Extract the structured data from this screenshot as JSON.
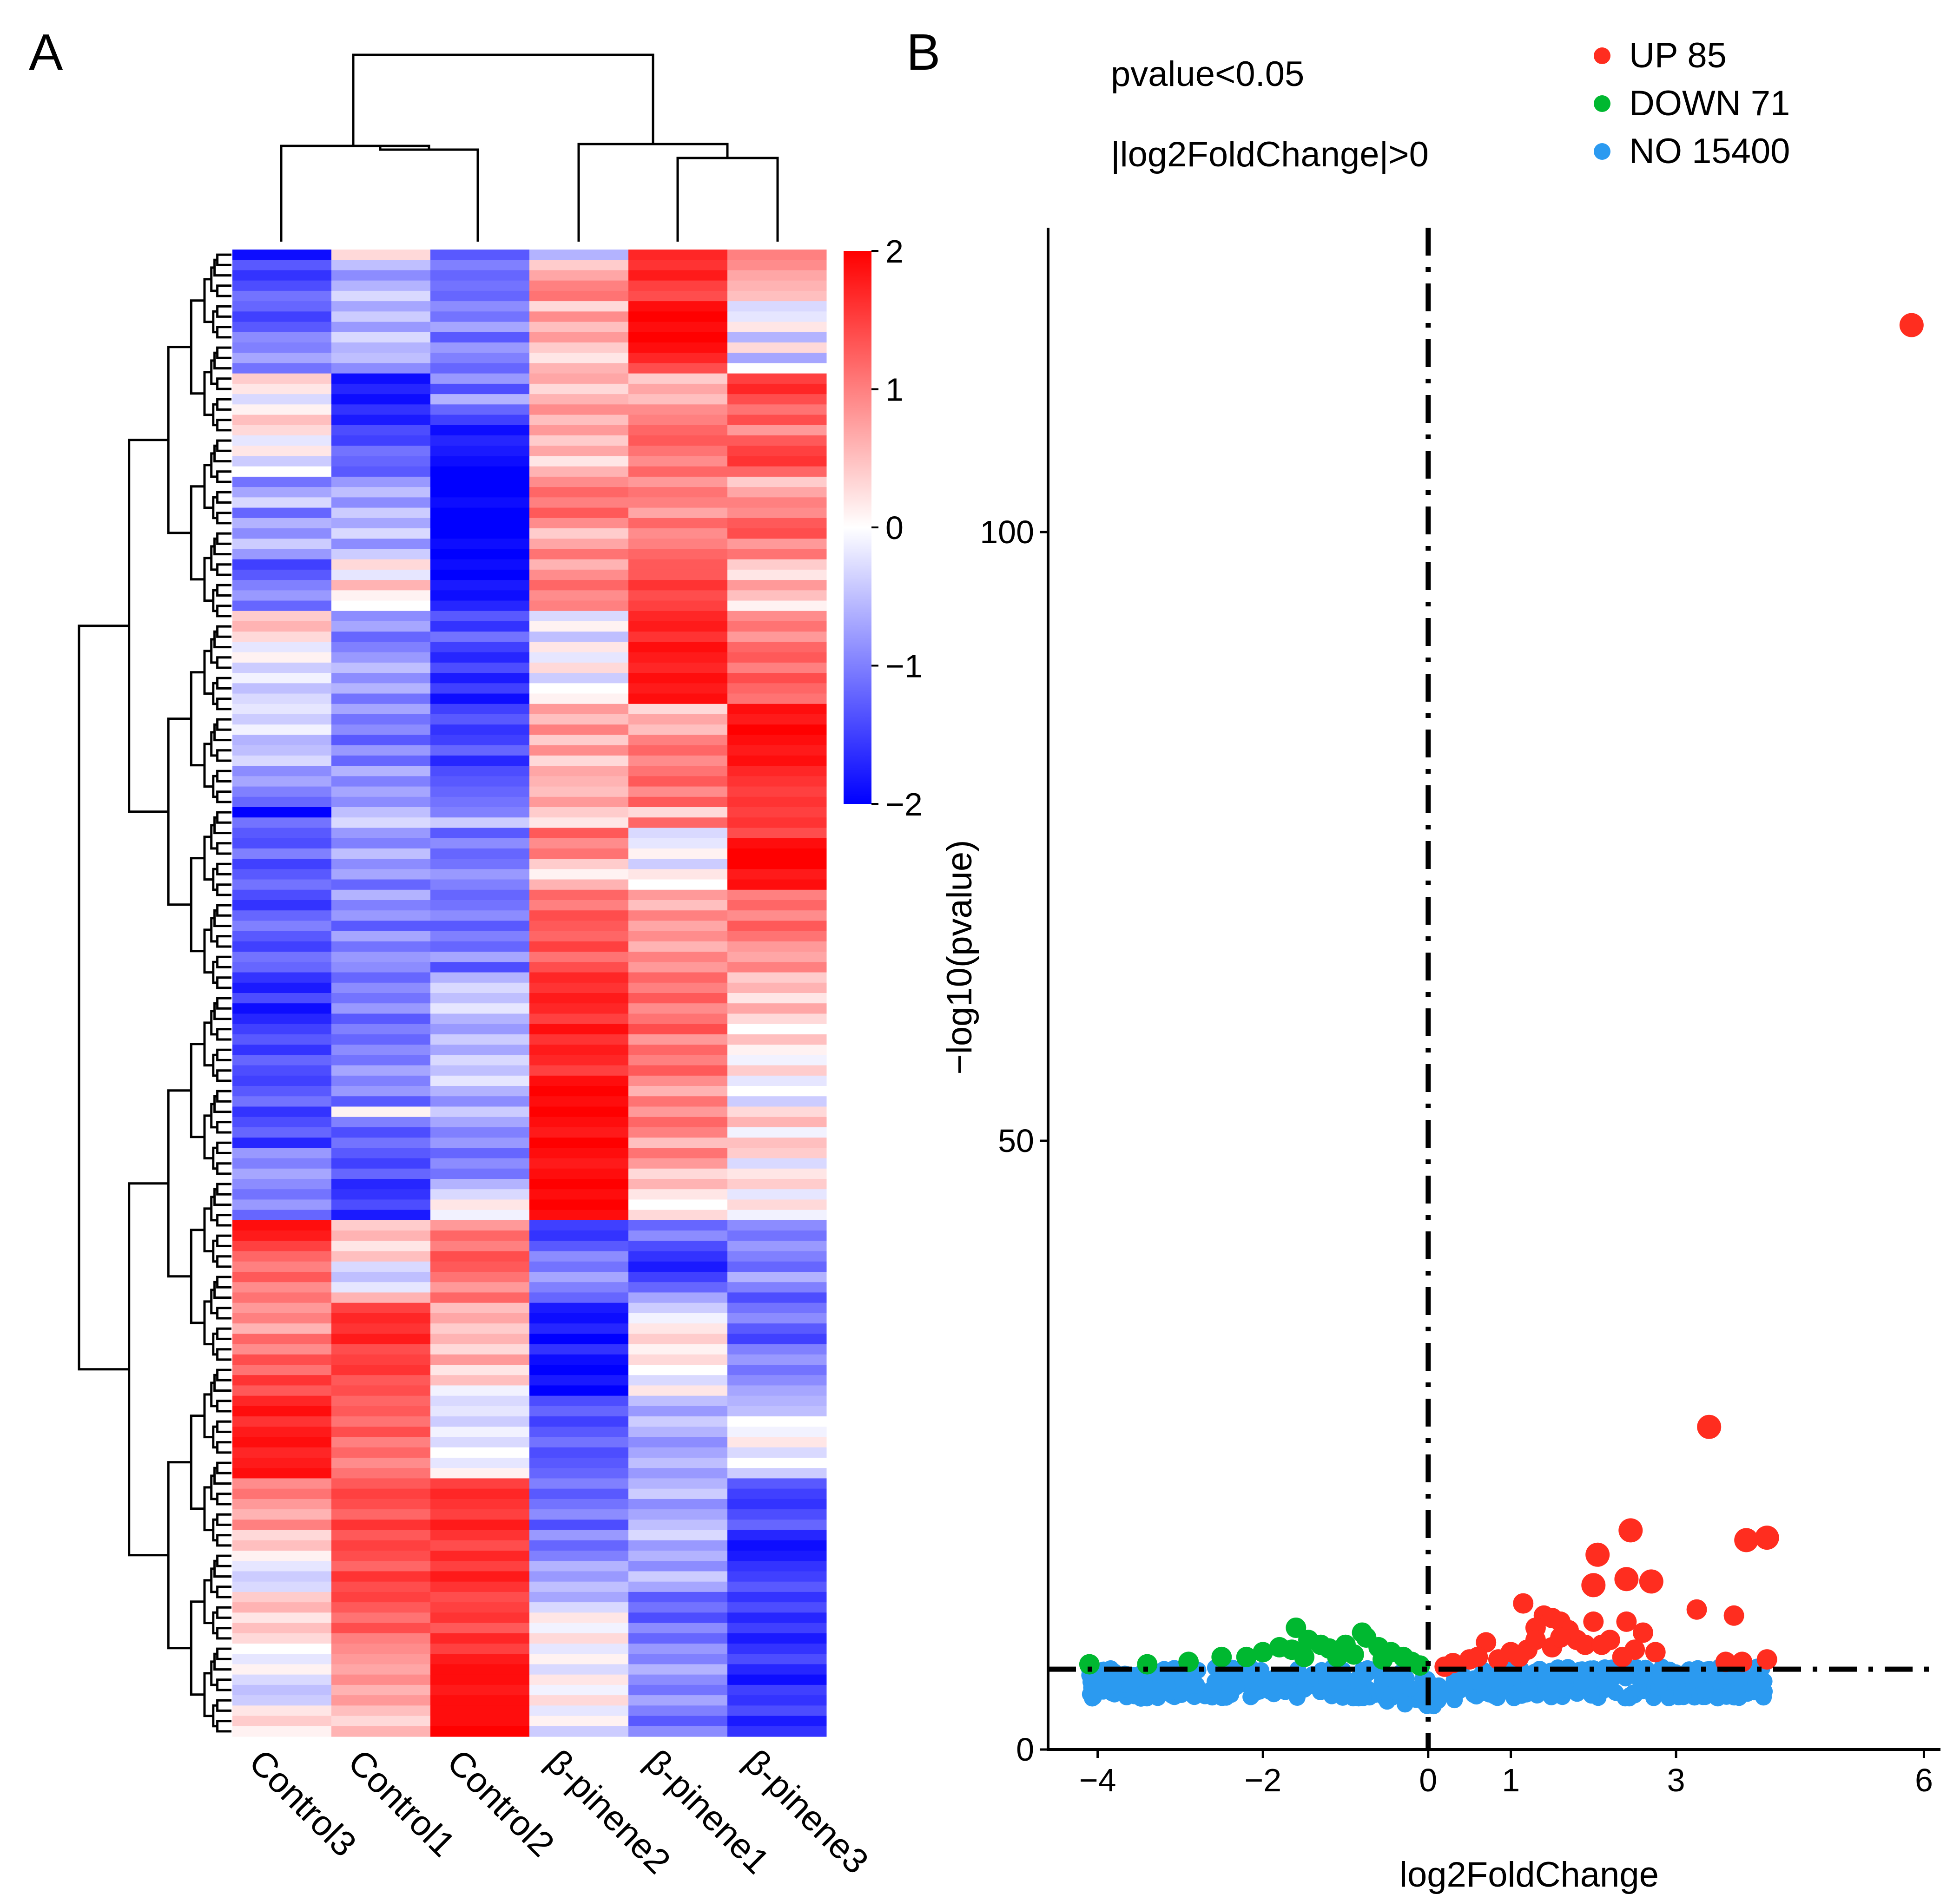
{
  "panels": {
    "a": "A",
    "b": "B"
  },
  "heatmap": {
    "columns": [
      "Control3",
      "Control1",
      "Control2",
      "β-pinene2",
      "β-pinene1",
      "β-pinene3"
    ],
    "colorbar": {
      "ticks": [
        "2",
        "1",
        "0",
        "−1",
        "−2"
      ],
      "min": -2,
      "max": 2
    },
    "colors": {
      "low": "#0000ff",
      "mid": "#ffffff",
      "high": "#ff0000"
    },
    "row_count": 150,
    "values": [
      [
        -1.9,
        0.3,
        -1.3,
        -0.6,
        1.7,
        1.0
      ],
      [
        -1.3,
        -0.5,
        -1.0,
        0.4,
        1.6,
        0.9
      ],
      [
        -1.6,
        -0.9,
        -1.2,
        0.7,
        1.8,
        0.7
      ],
      [
        -1.4,
        -0.6,
        -1.1,
        1.0,
        1.5,
        0.6
      ],
      [
        -1.1,
        -0.3,
        -1.2,
        1.1,
        1.4,
        0.5
      ],
      [
        -1.2,
        -0.7,
        -0.9,
        0.3,
        1.9,
        -0.3
      ],
      [
        -1.5,
        -0.4,
        -1.1,
        0.9,
        2.0,
        -0.2
      ],
      [
        -1.3,
        -0.8,
        -0.7,
        0.5,
        1.9,
        0.2
      ],
      [
        -0.9,
        -0.3,
        -1.3,
        0.8,
        2.0,
        -0.6
      ],
      [
        -1.0,
        -0.6,
        -0.8,
        0.4,
        1.9,
        0.3
      ],
      [
        -0.7,
        -0.5,
        -1.0,
        0.2,
        1.7,
        -0.7
      ],
      [
        -1.1,
        -0.9,
        -1.2,
        0.6,
        1.4,
        0.0
      ],
      [
        0.4,
        -1.9,
        -0.8,
        0.7,
        0.4,
        1.5
      ],
      [
        0.2,
        -1.7,
        -1.4,
        0.3,
        0.7,
        1.7
      ],
      [
        -0.3,
        -1.9,
        -0.6,
        0.6,
        0.5,
        1.4
      ],
      [
        0.1,
        -1.6,
        -1.2,
        0.9,
        0.9,
        1.1
      ],
      [
        0.5,
        -1.8,
        -1.5,
        0.5,
        1.0,
        1.4
      ],
      [
        0.3,
        -1.4,
        -1.9,
        0.8,
        1.2,
        0.8
      ],
      [
        -0.2,
        -1.5,
        -1.7,
        0.4,
        1.3,
        1.3
      ],
      [
        0.2,
        -1.1,
        -1.8,
        0.7,
        1.1,
        1.5
      ],
      [
        -0.4,
        -1.2,
        -1.9,
        0.2,
        0.9,
        1.6
      ],
      [
        0.0,
        -1.3,
        -2.0,
        0.6,
        1.2,
        1.2
      ],
      [
        -1.1,
        -0.8,
        -2.0,
        0.9,
        0.8,
        0.4
      ],
      [
        -0.7,
        -0.5,
        -2.0,
        1.2,
        1.1,
        0.7
      ],
      [
        -0.3,
        -0.9,
        -1.9,
        1.0,
        1.0,
        1.0
      ],
      [
        -1.2,
        -0.4,
        -2.0,
        1.3,
        0.7,
        0.9
      ],
      [
        -0.6,
        -0.7,
        -2.0,
        0.9,
        1.2,
        1.3
      ],
      [
        -0.9,
        -0.3,
        -2.0,
        0.4,
        0.9,
        1.4
      ],
      [
        -0.4,
        -0.9,
        -1.9,
        0.7,
        1.0,
        0.8
      ],
      [
        -0.8,
        -0.4,
        -2.0,
        1.1,
        1.2,
        1.1
      ],
      [
        -1.5,
        0.3,
        -1.9,
        0.6,
        1.3,
        0.4
      ],
      [
        -1.3,
        -0.2,
        -2.0,
        0.9,
        1.3,
        0.2
      ],
      [
        -1.0,
        0.6,
        -1.8,
        1.2,
        1.6,
        0.8
      ],
      [
        -0.8,
        0.1,
        -1.9,
        0.9,
        1.4,
        0.5
      ],
      [
        -1.2,
        0.0,
        -1.7,
        1.0,
        1.5,
        0.1
      ],
      [
        0.4,
        -0.9,
        -1.3,
        -0.3,
        1.7,
        0.9
      ],
      [
        0.6,
        -0.7,
        -1.6,
        0.1,
        1.8,
        1.1
      ],
      [
        0.3,
        -1.2,
        -1.1,
        -0.5,
        1.6,
        0.8
      ],
      [
        -0.2,
        -1.0,
        -1.5,
        0.2,
        1.9,
        1.2
      ],
      [
        0.1,
        -0.8,
        -1.7,
        -0.2,
        1.8,
        1.3
      ],
      [
        -0.4,
        -0.5,
        -1.4,
        0.3,
        1.7,
        1.0
      ],
      [
        -0.1,
        -0.9,
        -1.8,
        -0.4,
        1.9,
        1.4
      ],
      [
        -0.5,
        -0.6,
        -1.5,
        0.0,
        1.8,
        1.2
      ],
      [
        -0.3,
        -1.1,
        -1.9,
        0.1,
        1.9,
        1.1
      ],
      [
        -0.2,
        -0.7,
        -1.5,
        0.8,
        0.3,
        1.9
      ],
      [
        -0.4,
        -1.1,
        -1.3,
        0.5,
        0.7,
        1.8
      ],
      [
        -0.1,
        -0.9,
        -1.6,
        1.0,
        0.5,
        2.0
      ],
      [
        -0.6,
        -1.3,
        -1.5,
        0.4,
        1.0,
        1.9
      ],
      [
        -0.5,
        -0.8,
        -1.2,
        0.9,
        1.2,
        1.8
      ],
      [
        -0.3,
        -1.2,
        -1.7,
        0.3,
        0.9,
        1.9
      ],
      [
        -0.9,
        -0.6,
        -1.4,
        0.7,
        1.1,
        1.7
      ],
      [
        -0.7,
        -1.0,
        -1.3,
        0.6,
        1.3,
        1.6
      ],
      [
        -1.0,
        -0.7,
        -1.2,
        0.5,
        0.9,
        1.5
      ],
      [
        -1.2,
        -0.9,
        -1.1,
        0.8,
        1.3,
        1.6
      ],
      [
        -2.0,
        -0.5,
        -1.0,
        0.4,
        0.3,
        1.5
      ],
      [
        -1.1,
        -0.3,
        -0.4,
        0.2,
        1.2,
        1.6
      ],
      [
        -1.3,
        -0.8,
        -1.3,
        1.3,
        -0.3,
        1.4
      ],
      [
        -1.4,
        -1.0,
        -0.9,
        0.9,
        -0.2,
        1.9
      ],
      [
        -1.0,
        -0.5,
        -1.2,
        1.1,
        0.1,
        2.0
      ],
      [
        -1.5,
        -0.9,
        -1.1,
        0.4,
        -0.4,
        2.0
      ],
      [
        -1.3,
        -0.7,
        -0.8,
        0.1,
        0.2,
        1.8
      ],
      [
        -1.1,
        -1.2,
        -1.0,
        0.6,
        0.0,
        1.9
      ],
      [
        -1.4,
        -0.6,
        -1.2,
        1.2,
        0.8,
        1.0
      ],
      [
        -1.6,
        -1.0,
        -1.1,
        1.0,
        0.5,
        1.2
      ],
      [
        -1.2,
        -0.8,
        -0.9,
        1.4,
        1.0,
        0.9
      ],
      [
        -1.0,
        -1.3,
        -1.3,
        1.3,
        0.7,
        1.3
      ],
      [
        -1.3,
        -0.7,
        -1.0,
        1.2,
        0.9,
        1.1
      ],
      [
        -1.5,
        -1.1,
        -1.2,
        1.5,
        0.6,
        0.8
      ],
      [
        -1.1,
        -0.8,
        -0.7,
        1.1,
        1.0,
        0.7
      ],
      [
        -1.2,
        -0.9,
        -1.4,
        1.4,
        0.8,
        1.0
      ],
      [
        -1.6,
        -1.2,
        -0.6,
        1.7,
        1.2,
        0.4
      ],
      [
        -1.8,
        -0.9,
        -0.3,
        1.6,
        1.0,
        0.6
      ],
      [
        -1.4,
        -1.1,
        -0.5,
        1.8,
        1.3,
        0.2
      ],
      [
        -1.9,
        -0.8,
        -0.2,
        1.7,
        0.9,
        0.7
      ],
      [
        -1.7,
        -1.3,
        -0.6,
        1.5,
        1.1,
        0.3
      ],
      [
        -1.5,
        -1.0,
        -0.8,
        1.9,
        1.4,
        0.0
      ],
      [
        -1.3,
        -1.2,
        -0.4,
        1.6,
        0.8,
        0.5
      ],
      [
        -1.6,
        -0.9,
        -0.7,
        1.8,
        1.2,
        0.1
      ],
      [
        -1.2,
        -1.1,
        -0.3,
        1.7,
        1.0,
        -0.1
      ],
      [
        -1.4,
        -0.7,
        -0.5,
        1.5,
        1.3,
        0.4
      ],
      [
        -1.5,
        -1.0,
        -0.2,
        1.9,
        0.9,
        -0.2
      ],
      [
        -1.3,
        -0.8,
        -0.6,
        2.0,
        0.6,
        0.0
      ],
      [
        -1.1,
        -1.3,
        -0.9,
        1.9,
        1.1,
        -0.4
      ],
      [
        -1.6,
        0.1,
        -0.4,
        2.0,
        0.8,
        0.3
      ],
      [
        -1.4,
        -1.0,
        -0.7,
        1.9,
        1.2,
        0.6
      ],
      [
        -1.2,
        -1.4,
        -1.0,
        1.8,
        1.0,
        -0.1
      ],
      [
        -1.7,
        -1.1,
        -0.8,
        2.0,
        0.5,
        0.5
      ],
      [
        -0.8,
        -1.3,
        -1.2,
        1.9,
        1.1,
        0.4
      ],
      [
        -1.0,
        -1.5,
        -0.9,
        1.8,
        0.8,
        -0.3
      ],
      [
        -0.7,
        -1.2,
        -1.1,
        1.9,
        0.3,
        0.2
      ],
      [
        -0.9,
        -1.7,
        -0.6,
        2.0,
        0.6,
        0.4
      ],
      [
        -1.1,
        -1.6,
        -0.3,
        1.9,
        0.2,
        -0.2
      ],
      [
        -0.8,
        -1.4,
        0.2,
        2.0,
        0.0,
        0.3
      ],
      [
        -1.2,
        -1.8,
        -0.1,
        1.9,
        0.3,
        -0.1
      ],
      [
        1.9,
        0.4,
        0.8,
        -1.5,
        -1.2,
        -0.9
      ],
      [
        1.8,
        0.6,
        1.2,
        -1.6,
        -0.9,
        -1.1
      ],
      [
        1.5,
        0.2,
        1.0,
        -1.3,
        -1.4,
        -0.8
      ],
      [
        1.2,
        0.5,
        1.4,
        -0.9,
        -1.6,
        -1.0
      ],
      [
        1.0,
        -0.3,
        1.3,
        -1.1,
        -1.8,
        -1.2
      ],
      [
        1.3,
        -0.5,
        1.1,
        -0.7,
        -1.5,
        -0.6
      ],
      [
        0.9,
        -0.2,
        0.8,
        -1.0,
        -1.2,
        -1.0
      ],
      [
        1.1,
        0.6,
        1.2,
        -1.2,
        -0.7,
        -1.4
      ],
      [
        0.8,
        1.5,
        0.5,
        -1.8,
        -0.4,
        -1.1
      ],
      [
        1.0,
        1.7,
        0.7,
        -1.9,
        -0.1,
        -0.9
      ],
      [
        0.6,
        1.6,
        0.4,
        -1.7,
        0.2,
        -1.3
      ],
      [
        1.2,
        1.8,
        0.6,
        -2.0,
        0.4,
        -1.5
      ],
      [
        0.9,
        1.4,
        0.3,
        -1.6,
        0.1,
        -1.0
      ],
      [
        1.4,
        1.5,
        0.8,
        -1.9,
        0.3,
        -0.8
      ],
      [
        1.1,
        1.6,
        0.2,
        -2.0,
        0.0,
        -1.1
      ],
      [
        1.6,
        1.3,
        0.5,
        -1.8,
        -0.3,
        -0.9
      ],
      [
        1.3,
        1.4,
        -0.1,
        -2.0,
        0.2,
        -0.7
      ],
      [
        1.7,
        1.2,
        -0.3,
        -1.4,
        -0.5,
        -0.6
      ],
      [
        1.9,
        1.3,
        -0.2,
        -1.2,
        -0.8,
        -0.5
      ],
      [
        1.6,
        1.1,
        -0.4,
        -1.5,
        -0.4,
        0.0
      ],
      [
        1.8,
        1.4,
        -0.1,
        -1.3,
        -0.6,
        -0.1
      ],
      [
        1.9,
        1.0,
        -0.3,
        -1.1,
        -0.9,
        0.2
      ],
      [
        1.7,
        1.2,
        0.0,
        -1.4,
        -0.7,
        -0.3
      ],
      [
        1.8,
        0.9,
        -0.2,
        -1.3,
        -0.5,
        0.0
      ],
      [
        1.9,
        1.1,
        0.1,
        -1.2,
        -0.8,
        -0.4
      ],
      [
        0.9,
        1.3,
        1.5,
        -1.0,
        -0.6,
        -1.3
      ],
      [
        1.1,
        1.5,
        1.7,
        -1.3,
        -0.4,
        -1.5
      ],
      [
        0.8,
        1.4,
        1.6,
        -1.1,
        -0.9,
        -1.6
      ],
      [
        0.6,
        1.2,
        1.5,
        -0.9,
        -0.7,
        -1.4
      ],
      [
        1.0,
        1.6,
        1.8,
        -1.4,
        -0.5,
        -1.2
      ],
      [
        0.3,
        1.3,
        1.6,
        -0.8,
        -0.3,
        -1.7
      ],
      [
        0.5,
        1.5,
        1.4,
        -1.2,
        -0.8,
        -1.9
      ],
      [
        0.1,
        1.4,
        1.7,
        -1.0,
        -0.6,
        -1.8
      ],
      [
        -0.2,
        1.2,
        1.5,
        -0.6,
        -0.9,
        -1.6
      ],
      [
        -0.4,
        1.6,
        1.8,
        -0.8,
        -0.4,
        -1.5
      ],
      [
        -0.3,
        1.4,
        1.6,
        -0.5,
        -0.7,
        -1.3
      ],
      [
        0.4,
        1.5,
        1.4,
        -0.7,
        -1.3,
        -1.6
      ],
      [
        0.6,
        1.3,
        1.5,
        -0.3,
        -1.1,
        -1.4
      ],
      [
        0.2,
        1.1,
        1.6,
        0.2,
        -1.4,
        -1.7
      ],
      [
        0.5,
        1.4,
        1.3,
        -0.1,
        -0.9,
        -1.5
      ],
      [
        0.3,
        1.0,
        1.7,
        0.3,
        -1.2,
        -1.8
      ],
      [
        0.0,
        0.9,
        1.5,
        -0.2,
        -0.8,
        -1.6
      ],
      [
        -0.2,
        0.8,
        1.8,
        0.1,
        -1.0,
        -1.4
      ],
      [
        0.1,
        0.7,
        1.9,
        -0.3,
        -0.6,
        -1.7
      ],
      [
        -0.3,
        0.9,
        1.9,
        0.2,
        -0.9,
        -1.9
      ],
      [
        -0.5,
        0.6,
        1.8,
        -0.1,
        -1.1,
        -1.5
      ],
      [
        -0.4,
        0.8,
        1.9,
        0.3,
        -0.7,
        -1.6
      ],
      [
        0.2,
        0.5,
        1.9,
        -0.2,
        -1.0,
        -1.4
      ],
      [
        0.4,
        0.3,
        1.9,
        0.1,
        -1.3,
        -1.8
      ],
      [
        0.1,
        0.6,
        2.0,
        -0.4,
        -0.9,
        -1.6
      ]
    ]
  },
  "chart_data": {
    "type": "scatter",
    "title": "",
    "xlabel": "log2FoldChange",
    "ylabel": "−log10(pvalue)",
    "xlim": [
      -4.6,
      6.2
    ],
    "ylim": [
      0,
      125
    ],
    "x_ticks": [
      "−4",
      "−2",
      "0",
      "1",
      "3",
      "6"
    ],
    "x_tick_values": [
      -4,
      -2,
      0,
      1,
      3,
      6
    ],
    "y_ticks": [
      "0",
      "50",
      "100"
    ],
    "y_tick_values": [
      0,
      50,
      100
    ],
    "annotation_pvalue": "pvalue<0.05",
    "annotation_fc": "|log2FoldChange|>0",
    "threshold_y": 6.6,
    "threshold_x": 0,
    "legend": [
      {
        "label": "UP 85",
        "color": "#ff2d1f"
      },
      {
        "label": "DOWN 71",
        "color": "#00b830"
      },
      {
        "label": "NO 15400",
        "color": "#2b9af0"
      }
    ],
    "series": [
      {
        "name": "UP",
        "color": "#ff2d1f",
        "points": [
          [
            5.85,
            117
          ],
          [
            3.4,
            26.5
          ],
          [
            2.45,
            18
          ],
          [
            3.85,
            17.2
          ],
          [
            4.1,
            17.4
          ],
          [
            2.05,
            16
          ],
          [
            2.4,
            14
          ],
          [
            2.7,
            13.8
          ],
          [
            2.0,
            13.5
          ],
          [
            1.15,
            12
          ],
          [
            3.25,
            11.5
          ],
          [
            3.7,
            11
          ],
          [
            2.0,
            10.5
          ],
          [
            2.4,
            10.5
          ],
          [
            1.4,
            11
          ],
          [
            1.5,
            10.8
          ],
          [
            1.6,
            10.5
          ],
          [
            1.3,
            10.0
          ],
          [
            1.7,
            9.8
          ],
          [
            2.6,
            9.6
          ],
          [
            2.2,
            9.0
          ],
          [
            1.8,
            9.0
          ],
          [
            1.9,
            8.6
          ],
          [
            1.5,
            8.4
          ],
          [
            1.2,
            8.2
          ],
          [
            0.7,
            8.8
          ],
          [
            2.1,
            8.6
          ],
          [
            2.5,
            8.2
          ],
          [
            2.75,
            8.0
          ],
          [
            1.0,
            8.0
          ],
          [
            1.3,
            9.0
          ],
          [
            1.6,
            9.2
          ],
          [
            2.35,
            7.6
          ],
          [
            3.6,
            7.2
          ],
          [
            3.8,
            7.2
          ],
          [
            4.1,
            7.4
          ],
          [
            0.5,
            7.4
          ],
          [
            0.3,
            7.1
          ],
          [
            0.2,
            6.8
          ],
          [
            0.6,
            7.6
          ],
          [
            0.85,
            7.4
          ],
          [
            1.1,
            7.6
          ]
        ]
      },
      {
        "name": "DOWN",
        "color": "#00b830",
        "points": [
          [
            -0.8,
            9.6
          ],
          [
            -0.75,
            9.2
          ],
          [
            -1.6,
            10.0
          ],
          [
            -1.45,
            9.0
          ],
          [
            -1.3,
            8.6
          ],
          [
            -1.0,
            8.6
          ],
          [
            -0.6,
            8.4
          ],
          [
            -1.8,
            8.4
          ],
          [
            -2.0,
            8.0
          ],
          [
            -1.65,
            8.2
          ],
          [
            -1.2,
            8.3
          ],
          [
            -0.45,
            8.0
          ],
          [
            -0.3,
            7.6
          ],
          [
            -0.2,
            7.2
          ],
          [
            -0.9,
            7.8
          ],
          [
            -1.5,
            7.6
          ],
          [
            -2.5,
            7.6
          ],
          [
            -2.9,
            7.2
          ],
          [
            -3.4,
            7.0
          ],
          [
            -4.1,
            7.0
          ],
          [
            -2.2,
            7.6
          ],
          [
            -0.1,
            6.9
          ],
          [
            -1.1,
            7.6
          ],
          [
            -0.55,
            7.4
          ]
        ]
      }
    ],
    "no_count": 15400
  }
}
